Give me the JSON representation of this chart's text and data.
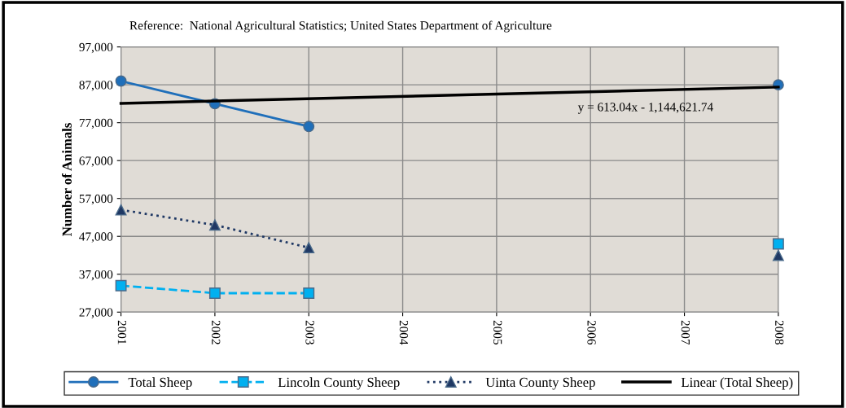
{
  "chart_data": {
    "type": "line",
    "ylabel": "Number of Animals",
    "annotations": [
      "Reference:  National Agricultural Statistics; United States Department of Agriculture",
      "y = 613.04x - 1,144,621.74"
    ],
    "x": [
      2001,
      2002,
      2003,
      2004,
      2005,
      2006,
      2007,
      2008
    ],
    "series": [
      {
        "name": "Total Sheep",
        "color": "#1f6fba",
        "values": [
          88000,
          82000,
          76000,
          null,
          null,
          null,
          null,
          87000
        ],
        "marker": "circle",
        "line_style": "solid"
      },
      {
        "name": "Lincoln County Sheep",
        "color": "#00b0f0",
        "values": [
          34000,
          32000,
          32000,
          null,
          null,
          null,
          null,
          45000
        ],
        "marker": "square",
        "line_style": "dashed"
      },
      {
        "name": "Uinta County Sheep",
        "color": "#1f3864",
        "values": [
          54000,
          50000,
          44000,
          null,
          null,
          null,
          null,
          42000
        ],
        "marker": "triangle",
        "line_style": "dotted"
      },
      {
        "name": "Linear (Total Sheep)",
        "color": "#000000",
        "x": [
          2001,
          2008
        ],
        "values": [
          82100,
          86400
        ],
        "marker": "none",
        "line_style": "solid"
      }
    ],
    "xlim": [
      2001,
      2008
    ],
    "xticks": [
      2001,
      2002,
      2003,
      2004,
      2005,
      2006,
      2007,
      2008
    ],
    "ylim": [
      27000,
      97000
    ],
    "yticks": [
      {
        "value": 27000,
        "label": "27,000"
      },
      {
        "value": 37000,
        "label": "37,000"
      },
      {
        "value": 47000,
        "label": "47,000"
      },
      {
        "value": 57000,
        "label": "57,000"
      },
      {
        "value": 67000,
        "label": "67,000"
      },
      {
        "value": 77000,
        "label": "77,000"
      },
      {
        "value": 87000,
        "label": "87,000"
      },
      {
        "value": 97000,
        "label": "97,000"
      }
    ],
    "grid": true,
    "legend": "bottom"
  }
}
